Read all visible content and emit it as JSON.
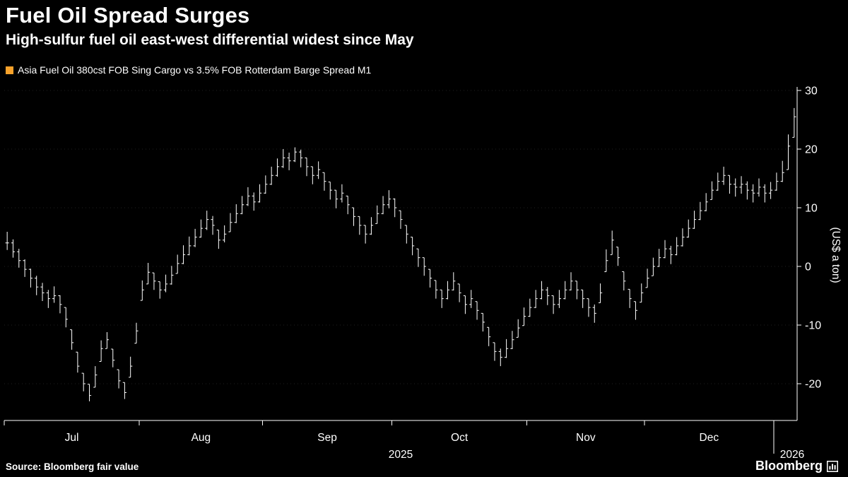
{
  "page": {
    "background": "#000000",
    "foreground": "#ffffff"
  },
  "header": {
    "title": "Fuel Oil Spread Surges",
    "subtitle": "High-sulfur fuel oil east-west differential widest since May"
  },
  "legend": {
    "swatch_color": "#f7a22b",
    "label": "Asia Fuel Oil 380cst FOB Sing Cargo vs 3.5% FOB Rotterdam Barge Spread M1"
  },
  "footer": {
    "source": "Source: Bloomberg fair value",
    "brand": "Bloomberg"
  },
  "chart_data": {
    "type": "bar",
    "bar_style": "hlc-ohlc",
    "title": "Fuel Oil Spread Surges",
    "xlabel": "",
    "ylabel": "(US$ a ton)",
    "ylim": [
      -26.5,
      31
    ],
    "yticks": [
      30,
      20,
      10,
      0,
      -10,
      -20
    ],
    "grid": "horizontal-dotted-faint",
    "legend_position": "top-left",
    "axis_color": "#ffffff",
    "bar_color": "#ffffff",
    "year_label": "2025",
    "year_break": {
      "label": "2026",
      "index": 131
    },
    "months": [
      {
        "label": "Jul",
        "start_index": 0
      },
      {
        "label": "Aug",
        "start_index": 23
      },
      {
        "label": "Sep",
        "start_index": 44
      },
      {
        "label": "Oct",
        "start_index": 66
      },
      {
        "label": "Nov",
        "start_index": 89
      },
      {
        "label": "Dec",
        "start_index": 109
      }
    ],
    "series": [
      {
        "name": "Asia Fuel Oil 380cst FOB Sing Cargo vs 3.5% FOB Rotterdam Barge Spread M1",
        "bars_hlc": [
          [
            5.9,
            2.8,
            4.0
          ],
          [
            4.6,
            1.5,
            2.5
          ],
          [
            3.0,
            -0.2,
            1.0
          ],
          [
            1.2,
            -1.8,
            -0.5
          ],
          [
            -0.4,
            -3.6,
            -2.0
          ],
          [
            -1.6,
            -4.9,
            -3.5
          ],
          [
            -2.8,
            -5.9,
            -4.5
          ],
          [
            -4.0,
            -7.1,
            -5.5
          ],
          [
            -3.4,
            -6.2,
            -5.0
          ],
          [
            -4.9,
            -8.0,
            -6.5
          ],
          [
            -7.0,
            -10.4,
            -9.0
          ],
          [
            -10.8,
            -14.2,
            -13.0
          ],
          [
            -14.6,
            -18.1,
            -17.0
          ],
          [
            -18.2,
            -21.3,
            -20.0
          ],
          [
            -20.1,
            -23.0,
            -22.0
          ],
          [
            -17.0,
            -20.6,
            -18.5
          ],
          [
            -12.6,
            -16.2,
            -14.0
          ],
          [
            -11.2,
            -14.0,
            -12.5
          ],
          [
            -14.1,
            -17.2,
            -16.0
          ],
          [
            -17.6,
            -20.8,
            -19.5
          ],
          [
            -19.8,
            -22.6,
            -21.5
          ],
          [
            -15.4,
            -18.9,
            -17.0
          ],
          [
            -9.6,
            -13.1,
            -11.0
          ],
          [
            -2.4,
            -5.8,
            -4.0
          ],
          [
            0.6,
            -3.0,
            -1.0
          ],
          [
            -1.1,
            -4.0,
            -2.5
          ],
          [
            -2.6,
            -5.5,
            -4.0
          ],
          [
            -1.4,
            -4.4,
            -3.0
          ],
          [
            0.1,
            -3.1,
            -1.5
          ],
          [
            2.0,
            -1.2,
            0.5
          ],
          [
            3.6,
            0.4,
            2.0
          ],
          [
            5.1,
            1.9,
            3.5
          ],
          [
            6.4,
            3.3,
            5.0
          ],
          [
            8.0,
            4.9,
            6.5
          ],
          [
            9.5,
            6.2,
            8.0
          ],
          [
            8.6,
            5.4,
            7.0
          ],
          [
            6.2,
            3.0,
            4.5
          ],
          [
            7.0,
            4.1,
            5.5
          ],
          [
            9.1,
            5.9,
            7.5
          ],
          [
            10.6,
            7.4,
            9.0
          ],
          [
            12.0,
            8.9,
            10.5
          ],
          [
            13.5,
            10.3,
            12.0
          ],
          [
            12.6,
            9.5,
            11.0
          ],
          [
            14.0,
            10.9,
            12.5
          ],
          [
            15.5,
            12.4,
            14.0
          ],
          [
            17.0,
            13.9,
            15.5
          ],
          [
            18.4,
            15.3,
            17.0
          ],
          [
            20.0,
            16.8,
            18.5
          ],
          [
            19.4,
            16.4,
            18.0
          ],
          [
            20.3,
            17.8,
            19.5
          ],
          [
            19.9,
            16.9,
            18.5
          ],
          [
            18.5,
            15.4,
            17.0
          ],
          [
            17.0,
            14.0,
            15.5
          ],
          [
            17.9,
            14.9,
            16.5
          ],
          [
            16.0,
            12.9,
            14.5
          ],
          [
            14.4,
            11.4,
            13.0
          ],
          [
            13.0,
            9.9,
            11.5
          ],
          [
            14.0,
            10.9,
            12.5
          ],
          [
            12.0,
            8.9,
            10.5
          ],
          [
            10.0,
            6.9,
            8.5
          ],
          [
            8.5,
            5.4,
            7.0
          ],
          [
            7.0,
            3.9,
            5.5
          ],
          [
            8.4,
            5.4,
            7.0
          ],
          [
            10.4,
            7.3,
            9.0
          ],
          [
            12.0,
            8.9,
            10.5
          ],
          [
            13.0,
            9.9,
            11.5
          ],
          [
            11.6,
            8.4,
            10.0
          ],
          [
            9.5,
            6.4,
            8.0
          ],
          [
            7.0,
            3.9,
            5.5
          ],
          [
            5.0,
            1.9,
            3.5
          ],
          [
            3.0,
            -0.1,
            1.5
          ],
          [
            1.5,
            -1.6,
            0.0
          ],
          [
            -0.5,
            -3.6,
            -2.0
          ],
          [
            -2.4,
            -5.5,
            -4.0
          ],
          [
            -4.0,
            -7.1,
            -5.5
          ],
          [
            -2.5,
            -5.6,
            -4.0
          ],
          [
            -1.0,
            -4.1,
            -2.5
          ],
          [
            -3.0,
            -6.1,
            -4.5
          ],
          [
            -5.0,
            -8.1,
            -6.5
          ],
          [
            -4.0,
            -7.1,
            -5.5
          ],
          [
            -6.0,
            -9.1,
            -7.5
          ],
          [
            -8.0,
            -11.1,
            -9.5
          ],
          [
            -10.4,
            -13.6,
            -12.0
          ],
          [
            -13.0,
            -16.1,
            -14.5
          ],
          [
            -14.0,
            -17.0,
            -15.5
          ],
          [
            -12.4,
            -15.6,
            -14.0
          ],
          [
            -11.0,
            -14.1,
            -12.5
          ],
          [
            -9.0,
            -12.1,
            -10.5
          ],
          [
            -7.0,
            -10.1,
            -8.5
          ],
          [
            -5.5,
            -8.6,
            -7.0
          ],
          [
            -4.0,
            -7.1,
            -5.5
          ],
          [
            -2.5,
            -5.6,
            -4.0
          ],
          [
            -3.5,
            -6.6,
            -5.0
          ],
          [
            -5.0,
            -8.1,
            -6.5
          ],
          [
            -4.0,
            -7.1,
            -5.5
          ],
          [
            -2.5,
            -5.6,
            -4.0
          ],
          [
            -1.0,
            -4.1,
            -2.5
          ],
          [
            -2.5,
            -5.6,
            -4.0
          ],
          [
            -4.0,
            -7.1,
            -5.5
          ],
          [
            -5.5,
            -8.6,
            -7.0
          ],
          [
            -6.5,
            -9.6,
            -8.0
          ],
          [
            -2.9,
            -6.2,
            -4.5
          ],
          [
            2.9,
            -0.9,
            1.0
          ],
          [
            6.1,
            2.0,
            4.5
          ],
          [
            3.3,
            0.1,
            1.5
          ],
          [
            -0.9,
            -4.1,
            -2.5
          ],
          [
            -3.9,
            -7.1,
            -5.5
          ],
          [
            -6.0,
            -9.1,
            -7.5
          ],
          [
            -2.9,
            -6.1,
            -4.5
          ],
          [
            -0.4,
            -3.6,
            -2.0
          ],
          [
            1.5,
            -1.6,
            0.0
          ],
          [
            3.0,
            -0.1,
            1.5
          ],
          [
            4.5,
            1.4,
            3.0
          ],
          [
            3.5,
            0.4,
            2.0
          ],
          [
            5.0,
            1.9,
            3.5
          ],
          [
            6.5,
            3.4,
            5.0
          ],
          [
            8.0,
            4.9,
            6.5
          ],
          [
            9.5,
            6.4,
            8.0
          ],
          [
            11.0,
            7.9,
            9.5
          ],
          [
            12.5,
            9.4,
            11.0
          ],
          [
            14.5,
            11.4,
            13.0
          ],
          [
            16.0,
            12.9,
            14.5
          ],
          [
            17.0,
            13.9,
            15.5
          ],
          [
            15.5,
            12.4,
            14.0
          ],
          [
            15.0,
            11.9,
            13.5
          ],
          [
            15.4,
            12.4,
            14.0
          ],
          [
            14.5,
            11.4,
            13.0
          ],
          [
            14.0,
            10.9,
            12.5
          ],
          [
            15.0,
            11.9,
            13.5
          ],
          [
            14.0,
            10.9,
            12.5
          ],
          [
            14.4,
            11.5,
            13.0
          ],
          [
            16.0,
            12.9,
            14.5
          ],
          [
            18.0,
            14.4,
            16.0
          ],
          [
            22.5,
            16.5,
            20.5
          ],
          [
            27.0,
            22.0,
            25.5
          ]
        ]
      }
    ]
  }
}
